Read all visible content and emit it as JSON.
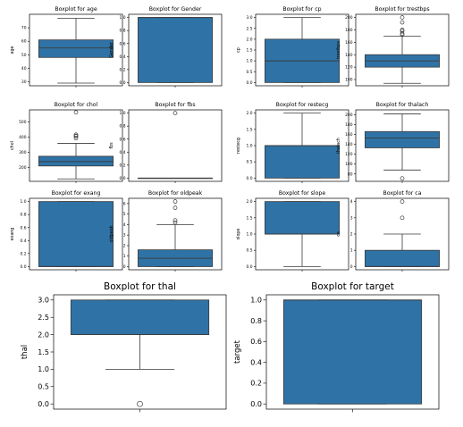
{
  "colors": {
    "box_fill": "#2f73a6",
    "line": "#3a3a3a",
    "axis": "#000000",
    "background": "#ffffff"
  },
  "chart_data": [
    {
      "type": "boxplot",
      "title": "Boxplot for age",
      "ylabel": "age",
      "ylim": [
        27,
        80
      ],
      "yticks": [
        30,
        40,
        50,
        60,
        70
      ],
      "box": {
        "whisker_low": 29,
        "q1": 48,
        "median": 55,
        "q3": 61,
        "whisker_high": 77
      },
      "outliers": []
    },
    {
      "type": "boxplot",
      "title": "Boxplot for Gender",
      "ylabel": "Gender",
      "ylim": [
        -0.05,
        1.05
      ],
      "yticks": [
        0.0,
        0.2,
        0.4,
        0.6,
        0.8,
        1.0
      ],
      "tick_decimals": 1,
      "box": {
        "whisker_low": 0,
        "q1": 0,
        "median": 1,
        "q3": 1,
        "whisker_high": 1
      },
      "outliers": []
    },
    {
      "type": "boxplot",
      "title": "Boxplot for cp",
      "ylabel": "cp",
      "ylim": [
        -0.15,
        3.15
      ],
      "yticks": [
        0.0,
        0.5,
        1.0,
        1.5,
        2.0,
        2.5,
        3.0
      ],
      "tick_decimals": 1,
      "box": {
        "whisker_low": 0,
        "q1": 0,
        "median": 1,
        "q3": 2,
        "whisker_high": 3
      },
      "outliers": []
    },
    {
      "type": "boxplot",
      "title": "Boxplot for trestbps",
      "ylabel": "trestbps",
      "ylim": [
        90,
        205
      ],
      "yticks": [
        100,
        120,
        140,
        160,
        180,
        200
      ],
      "box": {
        "whisker_low": 94,
        "q1": 120,
        "median": 130,
        "q3": 140,
        "whisker_high": 170
      },
      "outliers": [
        172,
        174,
        178,
        180,
        192,
        200
      ]
    },
    {
      "type": "boxplot",
      "title": "Boxplot for chol",
      "ylabel": "chol",
      "ylim": [
        110,
        580
      ],
      "yticks": [
        200,
        300,
        400,
        500
      ],
      "box": {
        "whisker_low": 126,
        "q1": 211,
        "median": 240,
        "q3": 275,
        "whisker_high": 360
      },
      "outliers": [
        394,
        407,
        409,
        417,
        564
      ]
    },
    {
      "type": "boxplot",
      "title": "Boxplot for fbs",
      "ylabel": "fbs",
      "ylim": [
        -0.05,
        1.05
      ],
      "yticks": [
        0.0,
        0.2,
        0.4,
        0.6,
        0.8,
        1.0
      ],
      "tick_decimals": 1,
      "box": {
        "whisker_low": 0,
        "q1": 0,
        "median": 0,
        "q3": 0,
        "whisker_high": 0
      },
      "outliers": [
        1
      ]
    },
    {
      "type": "boxplot",
      "title": "Boxplot for restecg",
      "ylabel": "restecg",
      "ylim": [
        -0.1,
        2.1
      ],
      "yticks": [
        0.0,
        0.5,
        1.0,
        1.5,
        2.0
      ],
      "tick_decimals": 1,
      "box": {
        "whisker_low": 0,
        "q1": 0,
        "median": 1,
        "q3": 1,
        "whisker_high": 2
      },
      "outliers": []
    },
    {
      "type": "boxplot",
      "title": "Boxplot for thalach",
      "ylabel": "thalach",
      "ylim": [
        65,
        210
      ],
      "yticks": [
        80,
        100,
        120,
        140,
        160,
        180,
        200
      ],
      "box": {
        "whisker_low": 88,
        "q1": 133,
        "median": 153,
        "q3": 166,
        "whisker_high": 202
      },
      "outliers": [
        71
      ]
    },
    {
      "type": "boxplot",
      "title": "Boxplot for exang",
      "ylabel": "exang",
      "ylim": [
        -0.05,
        1.05
      ],
      "yticks": [
        0.0,
        0.2,
        0.4,
        0.6,
        0.8,
        1.0
      ],
      "tick_decimals": 1,
      "box": {
        "whisker_low": 0,
        "q1": 0,
        "median": 0,
        "q3": 1,
        "whisker_high": 1
      },
      "outliers": []
    },
    {
      "type": "boxplot",
      "title": "Boxplot for oldpeak",
      "ylabel": "oldpeak",
      "ylim": [
        -0.3,
        6.5
      ],
      "yticks": [
        0,
        1,
        2,
        3,
        4,
        5,
        6
      ],
      "box": {
        "whisker_low": 0,
        "q1": 0,
        "median": 0.8,
        "q3": 1.6,
        "whisker_high": 4.0
      },
      "outliers": [
        4.2,
        4.4,
        5.6,
        6.2
      ]
    },
    {
      "type": "boxplot",
      "title": "Boxplot for slope",
      "ylabel": "slope",
      "ylim": [
        -0.1,
        2.1
      ],
      "yticks": [
        0.0,
        0.5,
        1.0,
        1.5,
        2.0
      ],
      "tick_decimals": 1,
      "box": {
        "whisker_low": 0,
        "q1": 1,
        "median": 1,
        "q3": 2,
        "whisker_high": 2
      },
      "outliers": []
    },
    {
      "type": "boxplot",
      "title": "Boxplot for ca",
      "ylabel": "ca",
      "ylim": [
        -0.2,
        4.2
      ],
      "yticks": [
        0,
        1,
        2,
        3,
        4
      ],
      "box": {
        "whisker_low": 0,
        "q1": 0,
        "median": 0,
        "q3": 1,
        "whisker_high": 2
      },
      "outliers": [
        3,
        4
      ]
    },
    {
      "type": "boxplot",
      "title": "Boxplot for thal",
      "ylabel": "thal",
      "ylim": [
        -0.15,
        3.15
      ],
      "yticks": [
        0.0,
        0.5,
        1.0,
        1.5,
        2.0,
        2.5,
        3.0
      ],
      "tick_decimals": 1,
      "box": {
        "whisker_low": 1,
        "q1": 2,
        "median": 2,
        "q3": 3,
        "whisker_high": 3
      },
      "outliers": [
        0
      ]
    },
    {
      "type": "boxplot",
      "title": "Boxplot for target",
      "ylabel": "target",
      "ylim": [
        -0.05,
        1.05
      ],
      "yticks": [
        0.0,
        0.2,
        0.4,
        0.6,
        0.8,
        1.0
      ],
      "tick_decimals": 1,
      "box": {
        "whisker_low": 0,
        "q1": 0,
        "median": 1,
        "q3": 1,
        "whisker_high": 1
      },
      "outliers": []
    }
  ]
}
